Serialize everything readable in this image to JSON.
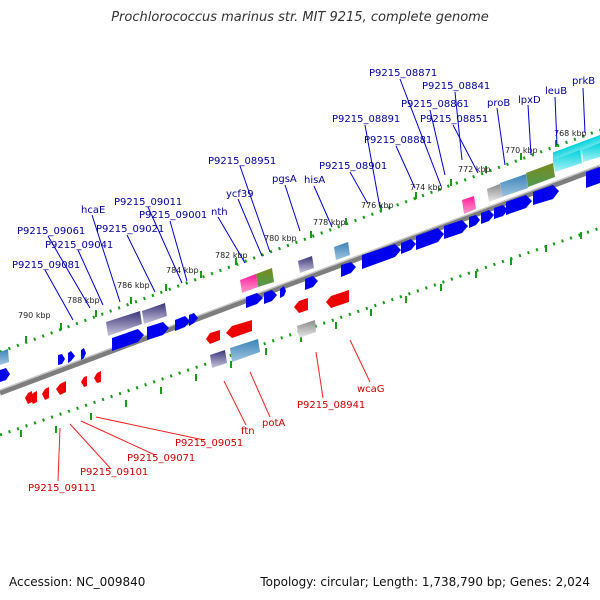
{
  "title": "Prochlorococcus marinus str. MIT 9215, complete genome",
  "accession_text": "Accession: NC_009840",
  "summary_text": "Topology: circular; Length: 1,738,790 bp; Genes: 2,024",
  "colors": {
    "forward_gene": "#0000ee",
    "reverse_gene": "#ee0000",
    "forward_label": "#000099",
    "reverse_label": "#cc0000",
    "tick": "#1a9a1a",
    "backbone": "#999999"
  },
  "scale_labels": [
    "768 kbp",
    "770 kbp",
    "772 kbp",
    "774 kbp",
    "776 kbp",
    "778 kbp",
    "780 kbp",
    "782 kbp",
    "784 kbp",
    "786 kbp",
    "788 kbp",
    "790 kbp"
  ],
  "forward_labels": [
    "prkB",
    "leuB",
    "lpxD",
    "proB",
    "P9215_08871",
    "P9215_08841",
    "P9215_08861",
    "P9215_08851",
    "P9215_08891",
    "P9215_08881",
    "P9215_08901",
    "hisA",
    "pgsA",
    "ycf39",
    "P9215_08951",
    "nth",
    "P9215_09011",
    "P9215_09001",
    "P9215_09021",
    "hcaE",
    "P9215_09061",
    "P9215_09041",
    "P9215_09081"
  ],
  "reverse_labels": [
    "wcaG",
    "P9215_08941",
    "potA",
    "ftn",
    "P9215_09051",
    "P9215_09071",
    "P9215_09101",
    "P9215_09111"
  ]
}
